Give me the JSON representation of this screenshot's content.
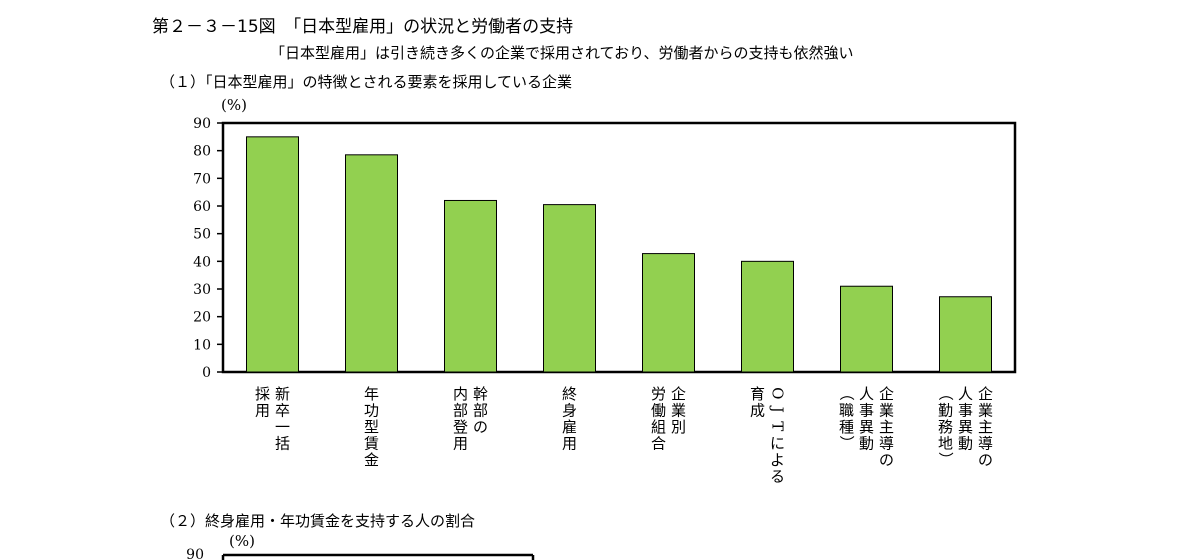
{
  "figure": {
    "title": "第２－３－15図　「日本型雇用」の状況と労働者の支持",
    "subtitle": "「日本型雇用」は引き続き多くの企業で採用されており、労働者からの支持も依然強い",
    "section1_title": "（１）「日本型雇用」の特徴とされる要素を採用している企業",
    "section2_title": "（２）終身雇用・年功賃金を支持する人の割合"
  },
  "chart_data": [
    {
      "type": "bar",
      "title": "（１）「日本型雇用」の特徴とされる要素を採用している企業",
      "ylabel": "(%)",
      "ylim": [
        0,
        90
      ],
      "yticks": [
        0,
        10,
        20,
        30,
        40,
        50,
        60,
        70,
        80,
        90
      ],
      "grid": false,
      "bar_color": "#92d050",
      "categories": [
        "新卒一括採用",
        "年功型賃金",
        "幹部の内部登用",
        "終身雇用",
        "企業別労働組合",
        "OJTによる育成",
        "企業主導の人事異動（職種）",
        "企業主導の人事異動（勤務地）"
      ],
      "category_label_lines": [
        [
          "新卒一括",
          "採用"
        ],
        [
          "年功型賃金"
        ],
        [
          "幹部の",
          "内部登用"
        ],
        [
          "終身雇用"
        ],
        [
          "企業別",
          "労働組合"
        ],
        [
          "OJTによる",
          "育成"
        ],
        [
          "企業主導の",
          "人事異動",
          "（職種）"
        ],
        [
          "企業主導の",
          "人事異動",
          "（勤務地）"
        ]
      ],
      "values": [
        85,
        78.5,
        62,
        60.5,
        42.8,
        40,
        31,
        27.2
      ]
    },
    {
      "type": "bar",
      "title": "（２）終身雇用・年功賃金を支持する人の割合",
      "ylabel": "(%)",
      "yticks": [
        90
      ]
    }
  ]
}
